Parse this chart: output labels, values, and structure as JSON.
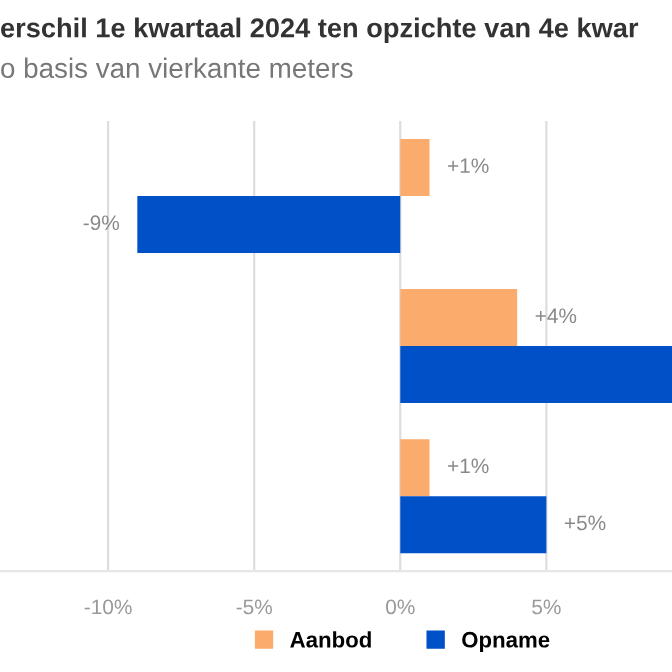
{
  "chart_data": {
    "type": "bar",
    "orientation": "horizontal",
    "title": "erschil 1e kwartaal 2024 ten opzichte van 4e kwar",
    "subtitle": "o basis van vierkante meters",
    "categories": [
      null,
      null,
      null
    ],
    "series": [
      {
        "name": "Aanbod",
        "color": "#fbab6b",
        "values": [
          1,
          4,
          1
        ],
        "value_labels": [
          "+1%",
          "+4%",
          "+1%"
        ]
      },
      {
        "name": "Opname",
        "color": "#0050c8",
        "values": [
          -9,
          9.3,
          5
        ],
        "value_labels": [
          "-9%",
          null,
          "+5%"
        ]
      }
    ],
    "xlim": [
      -13.7,
      9.3
    ],
    "xticks": [
      {
        "value": -10,
        "label": "-10%"
      },
      {
        "value": -5,
        "label": "-5%"
      },
      {
        "value": 0,
        "label": "0%"
      },
      {
        "value": 5,
        "label": "5%"
      }
    ],
    "grid": "x",
    "legend": "bottom"
  }
}
